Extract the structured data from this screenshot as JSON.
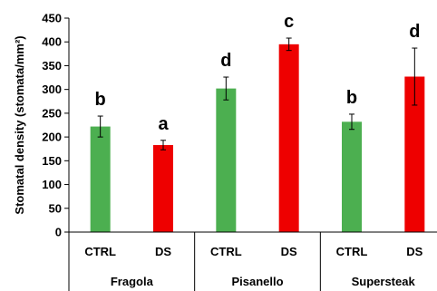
{
  "chart_data": {
    "type": "bar",
    "ylabel": "Stomatal density (stomata/mm²)",
    "ylim": [
      0,
      450
    ],
    "yticks": [
      0,
      50,
      100,
      150,
      200,
      250,
      300,
      350,
      400,
      450
    ],
    "grid": false,
    "groups": [
      "Fragola",
      "Pisanello",
      "Supersteak"
    ],
    "categories": [
      "CTRL",
      "DS",
      "CTRL",
      "DS",
      "CTRL",
      "DS"
    ],
    "values": [
      222,
      183,
      302,
      395,
      232,
      327
    ],
    "errors": [
      22,
      10,
      24,
      13,
      16,
      60
    ],
    "significance": [
      "b",
      "a",
      "d",
      "c",
      "b",
      "d"
    ],
    "colors": [
      "#4caf50",
      "#ee0000",
      "#4caf50",
      "#ee0000",
      "#4caf50",
      "#ee0000"
    ]
  }
}
